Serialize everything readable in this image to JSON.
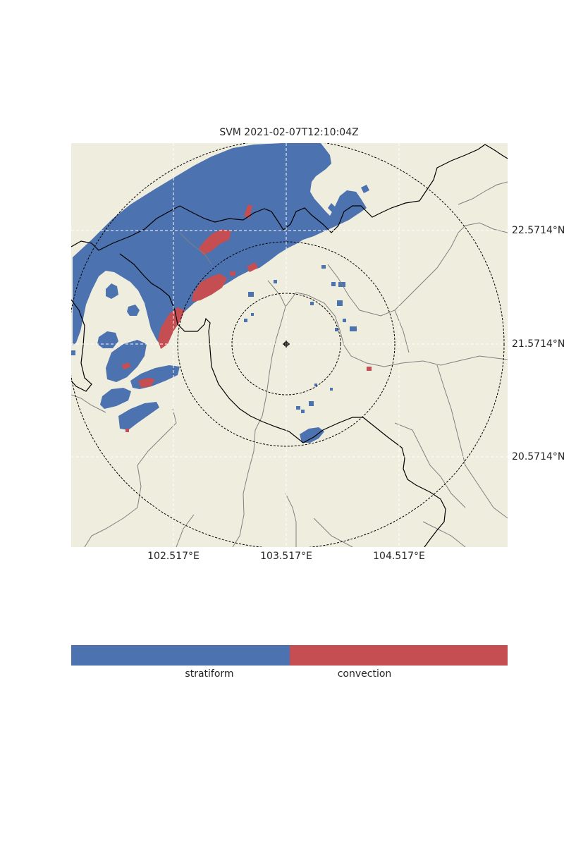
{
  "title": "SVM 2021-02-07T12:10:04Z",
  "map": {
    "lat_labels": [
      "22.5714°N",
      "21.5714°N",
      "20.5714°N"
    ],
    "lon_labels": [
      "102.517°E",
      "103.517°E",
      "104.517°E"
    ],
    "center": {
      "lon": 103.517,
      "lat": 21.5714
    },
    "range_rings_km": [
      50,
      100,
      200
    ],
    "colors": {
      "land": "#efedde",
      "stratiform": "#4c72b0",
      "convection": "#c44e52",
      "gridline": "#ffffff",
      "border": "#000000",
      "province": "#808080",
      "ring": "#000000"
    }
  },
  "colorbar": {
    "categories": [
      "stratiform",
      "convection"
    ],
    "colors": [
      "#4c72b0",
      "#c44e52"
    ]
  }
}
